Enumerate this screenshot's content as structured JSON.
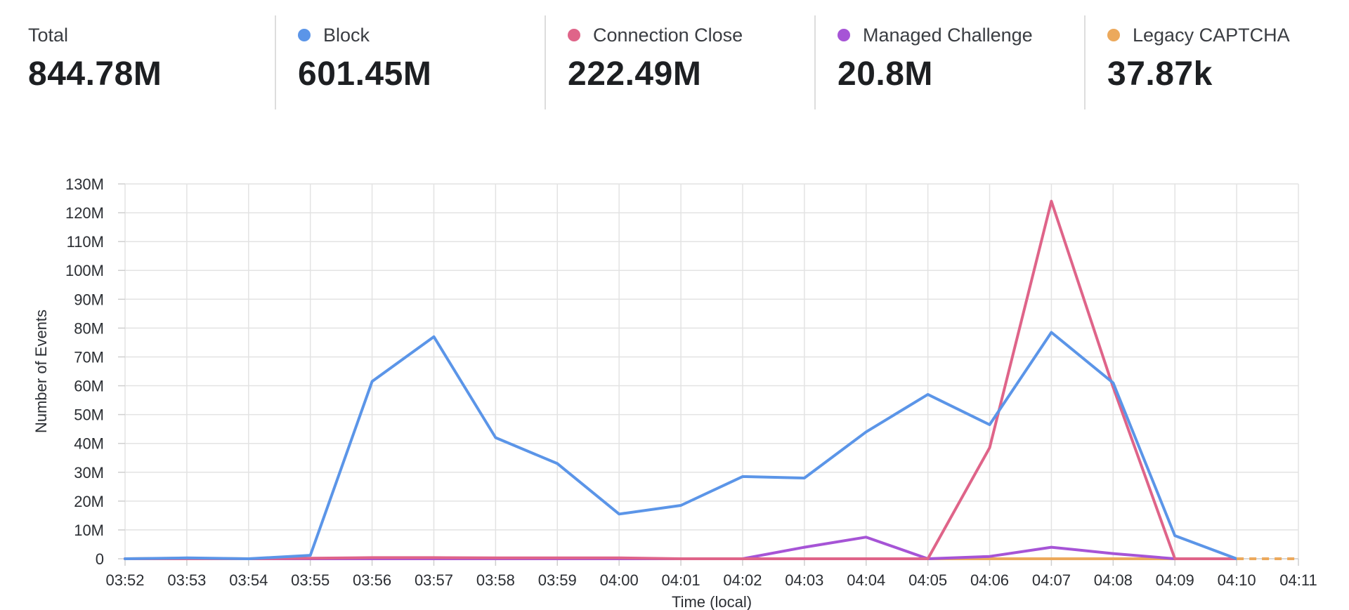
{
  "summary": {
    "total": {
      "label": "Total",
      "value": "844.78M"
    },
    "block": {
      "label": "Block",
      "value": "601.45M",
      "color": "#5b95e8"
    },
    "connection_close": {
      "label": "Connection Close",
      "value": "222.49M",
      "color": "#df6489"
    },
    "managed_challenge": {
      "label": "Managed Challenge",
      "value": "20.8M",
      "color": "#a654d6"
    },
    "legacy_captcha": {
      "label": "Legacy CAPTCHA",
      "value": "37.87k",
      "color": "#eca95c"
    }
  },
  "chart_data": {
    "type": "line",
    "xlabel": "Time (local)",
    "ylabel": "Number of Events",
    "ylim": [
      0,
      130
    ],
    "y_ticks": [
      "0",
      "10M",
      "20M",
      "30M",
      "40M",
      "50M",
      "60M",
      "70M",
      "80M",
      "90M",
      "100M",
      "110M",
      "120M",
      "130M"
    ],
    "x": [
      "03:52",
      "03:53",
      "03:54",
      "03:55",
      "03:56",
      "03:57",
      "03:58",
      "03:59",
      "04:00",
      "04:01",
      "04:02",
      "04:03",
      "04:04",
      "04:05",
      "04:06",
      "04:07",
      "04:08",
      "04:09",
      "04:10",
      "04:11"
    ],
    "grid": true,
    "series": [
      {
        "name": "Block",
        "color": "#5b95e8",
        "values": [
          0,
          0.3,
          0,
          1.2,
          61.5,
          77,
          42,
          33,
          15.5,
          18.5,
          28.5,
          28,
          44,
          57,
          46.5,
          78.5,
          61,
          8,
          0,
          null
        ]
      },
      {
        "name": "Connection Close",
        "color": "#df6489",
        "values": [
          0,
          0,
          0,
          0.2,
          0.4,
          0.4,
          0.3,
          0.3,
          0.3,
          0,
          0,
          0,
          0,
          0,
          38.5,
          124,
          59.5,
          0,
          0,
          null
        ]
      },
      {
        "name": "Managed Challenge",
        "color": "#a654d6",
        "values": [
          0,
          0,
          0,
          0,
          0,
          0,
          0,
          0,
          0,
          0,
          0,
          4,
          7.5,
          0,
          0.8,
          4,
          1.8,
          0,
          0,
          null
        ]
      },
      {
        "name": "Legacy CAPTCHA",
        "color": "#eca95c",
        "values": [
          0,
          0.2,
          0,
          0,
          0,
          0,
          0,
          0,
          0,
          0,
          0,
          0,
          0,
          0,
          0,
          0,
          0,
          0,
          0,
          null
        ]
      }
    ],
    "dashed_tail": [
      0,
      0
    ]
  }
}
